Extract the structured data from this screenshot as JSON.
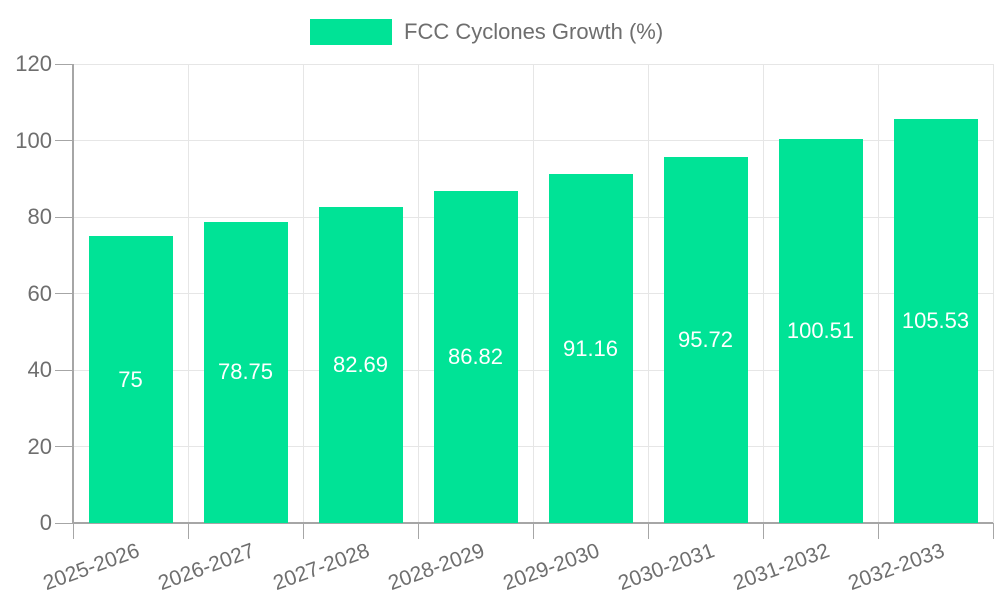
{
  "legend": {
    "position": "top"
  },
  "colors": {
    "bar": "#00E396",
    "grid": "#e6e6e6",
    "axis": "#a6a6a6",
    "axis_text": "#6e6e6e",
    "value_label_text": "#ffffff"
  },
  "chart_data": {
    "type": "bar",
    "title": "FCC Cyclones Growth (%)",
    "categories": [
      "2025-2026",
      "2026-2027",
      "2027-2028",
      "2028-2029",
      "2029-2030",
      "2030-2031",
      "2031-2032",
      "2032-2033"
    ],
    "values": [
      75,
      78.75,
      82.69,
      86.82,
      91.16,
      95.72,
      100.51,
      105.53
    ],
    "value_labels": [
      "75",
      "78.75",
      "82.69",
      "86.82",
      "91.16",
      "95.72",
      "100.51",
      "105.53"
    ],
    "series_name": "FCC Cyclones Growth (%)",
    "xlabel": "",
    "ylabel": "",
    "ylim": [
      0,
      120
    ],
    "yticks": [
      0,
      20,
      40,
      60,
      80,
      100,
      120
    ],
    "grid": true,
    "legend_position": "top",
    "value_label_placement": "inside-center"
  }
}
